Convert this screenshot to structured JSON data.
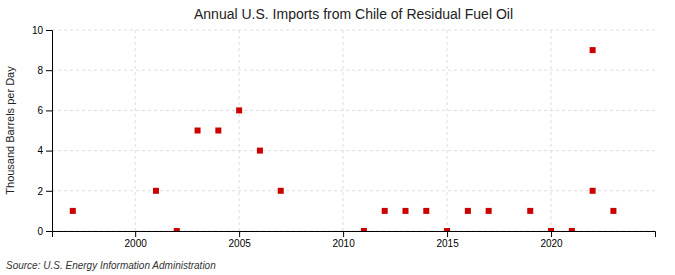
{
  "chart_data": {
    "type": "scatter",
    "title": "Annual U.S. Imports from Chile of Residual Fuel Oil",
    "ylabel": "Thousand Barrels per Day",
    "source": "Source: U.S. Energy Information Administration",
    "x": [
      1997,
      2001,
      2002,
      2003,
      2004,
      2005,
      2006,
      2007,
      2011,
      2012,
      2013,
      2014,
      2015,
      2016,
      2017,
      2019,
      2020,
      2021,
      2022,
      2022,
      2023
    ],
    "values": [
      1,
      2,
      0,
      5,
      5,
      6,
      4,
      2,
      0,
      1,
      1,
      1,
      0,
      1,
      1,
      1,
      0,
      0,
      2,
      9,
      1
    ],
    "color": "#cc0000",
    "marker": "square",
    "xlim": [
      1996,
      2025
    ],
    "ylim": [
      0,
      10
    ],
    "xticks": [
      2000,
      2005,
      2010,
      2015,
      2020
    ],
    "yticks": [
      0,
      2,
      4,
      6,
      8,
      10
    ],
    "grid": true
  }
}
